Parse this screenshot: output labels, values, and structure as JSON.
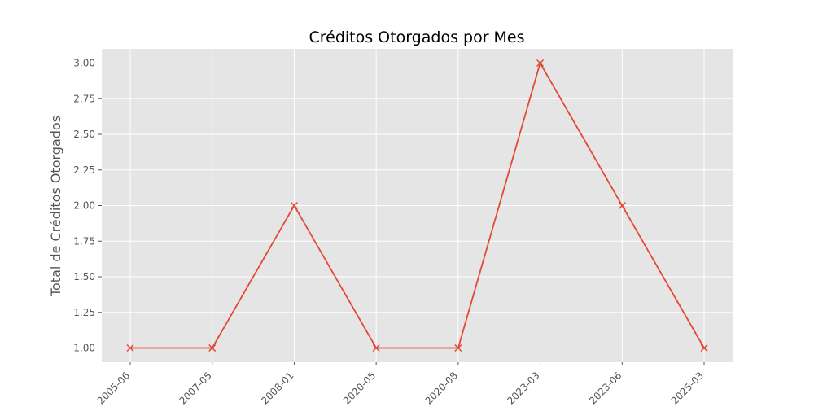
{
  "chart_data": {
    "type": "line",
    "title": "Créditos Otorgados por Mes",
    "xlabel": "",
    "ylabel": "Total de Créditos Otorgados",
    "categories": [
      "2005-06",
      "2007-05",
      "2008-01",
      "2020-05",
      "2020-08",
      "2023-03",
      "2023-06",
      "2025-03"
    ],
    "series": [
      {
        "values": [
          1,
          1,
          2,
          1,
          1,
          3,
          2,
          1
        ]
      }
    ],
    "ylim": [
      0.9,
      3.1
    ],
    "yticks": [
      "1.00",
      "1.25",
      "1.50",
      "1.75",
      "2.00",
      "2.25",
      "2.50",
      "2.75",
      "3.00"
    ],
    "marker": "x",
    "grid": true,
    "colors": {
      "line": "#E24A33",
      "plot_bg": "#E5E5E5",
      "grid": "#FFFFFF"
    }
  }
}
